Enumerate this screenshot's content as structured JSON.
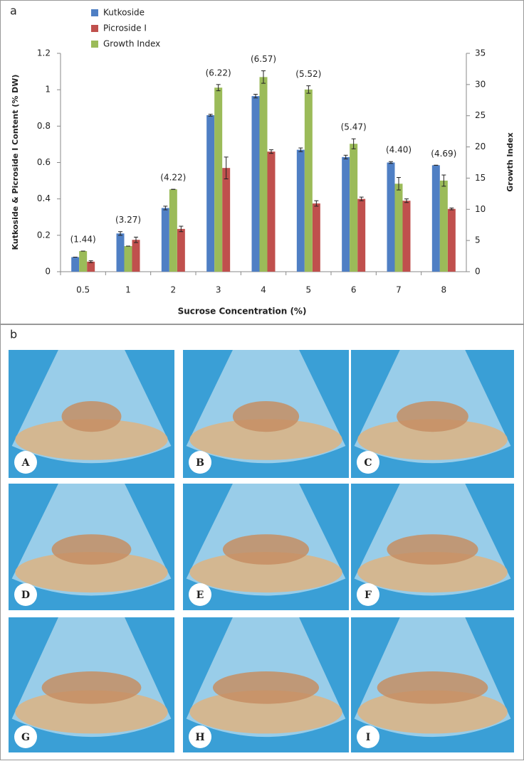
{
  "panel_a_label": "a",
  "chart_data": {
    "type": "bar",
    "x_label": "Sucrose Concentration  (%)",
    "y_label": "Kutkoside & Picroside I Content (% DW)",
    "y2_label": "Growth Index",
    "categories": [
      "0.5",
      "1",
      "2",
      "3",
      "4",
      "5",
      "6",
      "7",
      "8"
    ],
    "series": [
      {
        "name": "Kutkoside",
        "color": "#4f7fc4",
        "values": [
          0.08,
          0.21,
          0.35,
          0.86,
          0.965,
          0.67,
          0.63,
          0.6,
          0.585
        ],
        "errors": [
          0,
          0.01,
          0.01,
          0.005,
          0.01,
          0.01,
          0.01,
          0.005,
          0
        ]
      },
      {
        "name": "Picroside I",
        "color": "#c0504d",
        "values": [
          0.055,
          0.175,
          0.235,
          0.57,
          0.66,
          0.375,
          0.4,
          0.39,
          0.345
        ],
        "errors": [
          0.005,
          0.015,
          0.015,
          0.06,
          0.01,
          0.015,
          0.01,
          0.01,
          0.005
        ]
      },
      {
        "name": "Growth Index",
        "color": "#9bbb59",
        "axis": "y2",
        "values": [
          3.3,
          4.1,
          13.2,
          29.5,
          31.2,
          29.2,
          20.5,
          14.1,
          14.6
        ],
        "errors": [
          0,
          0,
          0,
          0.5,
          1.0,
          0.6,
          0.8,
          1.0,
          0.9
        ]
      }
    ],
    "group_labels": [
      "(1.44)",
      "(3.27)",
      "(4.22)",
      "(6.22)",
      "(6.57)",
      "(5.52)",
      "(5.47)",
      "(4.40)",
      "(4.69)"
    ],
    "ylim": [
      0,
      1.2
    ],
    "yticks": [
      0,
      0.2,
      0.4,
      0.6,
      0.8,
      1,
      1.2
    ],
    "y2lim": [
      0,
      35
    ],
    "y2ticks": [
      0,
      5,
      10,
      15,
      20,
      25,
      30,
      35
    ],
    "legend": "top-left"
  },
  "panel_b": {
    "label": "b",
    "photo_labels": [
      "A",
      "B",
      "C",
      "D",
      "E",
      "F",
      "G",
      "H",
      "I"
    ]
  }
}
